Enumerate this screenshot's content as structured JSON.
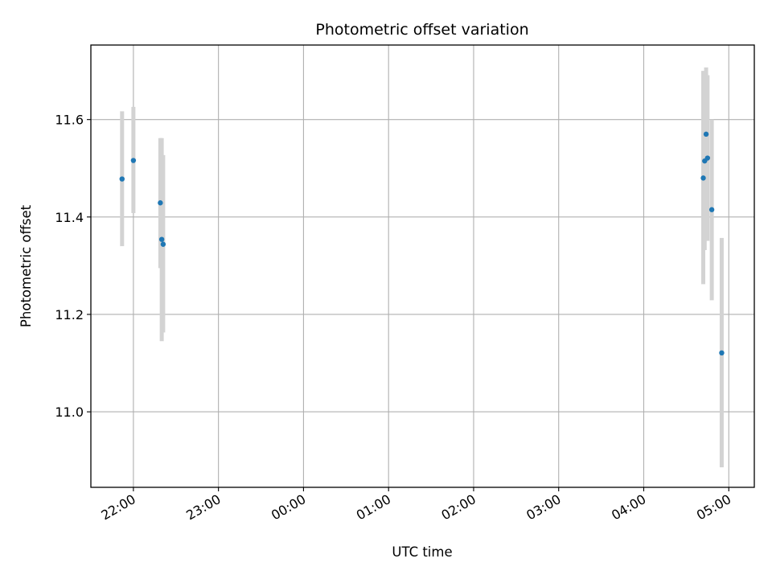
{
  "chart_data": {
    "type": "scatter",
    "title": "Photometric offset variation",
    "xlabel": "UTC time",
    "ylabel": "Photometric offset",
    "x_axis": {
      "unit": "UTC time (hours after 21:00)",
      "xlim_hours": [
        21.5,
        29.3
      ],
      "ticks": [
        {
          "value": 22,
          "label": "22:00"
        },
        {
          "value": 23,
          "label": "23:00"
        },
        {
          "value": 24,
          "label": "00:00"
        },
        {
          "value": 25,
          "label": "01:00"
        },
        {
          "value": 26,
          "label": "02:00"
        },
        {
          "value": 27,
          "label": "03:00"
        },
        {
          "value": 28,
          "label": "04:00"
        },
        {
          "value": 29,
          "label": "05:00"
        }
      ]
    },
    "y_axis": {
      "ylim": [
        10.845,
        11.753
      ],
      "ticks": [
        {
          "value": 11.0,
          "label": "11.0"
        },
        {
          "value": 11.2,
          "label": "11.2"
        },
        {
          "value": 11.4,
          "label": "11.4"
        },
        {
          "value": 11.6,
          "label": "11.6"
        }
      ]
    },
    "grid": true,
    "marker_color": "#1f77b4",
    "errorbar_color": "#d3d3d3",
    "points": [
      {
        "time": "21:52",
        "y": 11.478,
        "yerr_low": 11.34,
        "yerr_high": 11.617
      },
      {
        "time": "22:00",
        "y": 11.516,
        "yerr_low": 11.408,
        "yerr_high": 11.626
      },
      {
        "time": "22:19",
        "y": 11.429,
        "yerr_low": 11.295,
        "yerr_high": 11.562
      },
      {
        "time": "22:20",
        "y": 11.354,
        "yerr_low": 11.145,
        "yerr_high": 11.562
      },
      {
        "time": "22:21",
        "y": 11.344,
        "yerr_low": 11.163,
        "yerr_high": 11.527
      },
      {
        "time": "04:42",
        "y": 11.48,
        "yerr_low": 11.262,
        "yerr_high": 11.7
      },
      {
        "time": "04:43",
        "y": 11.515,
        "yerr_low": 11.332,
        "yerr_high": 11.697
      },
      {
        "time": "04:44",
        "y": 11.57,
        "yerr_low": 11.432,
        "yerr_high": 11.707
      },
      {
        "time": "04:45",
        "y": 11.521,
        "yerr_low": 11.351,
        "yerr_high": 11.691
      },
      {
        "time": "04:48",
        "y": 11.415,
        "yerr_low": 11.229,
        "yerr_high": 11.6
      },
      {
        "time": "04:55",
        "y": 11.121,
        "yerr_low": 10.886,
        "yerr_high": 11.357
      }
    ]
  }
}
